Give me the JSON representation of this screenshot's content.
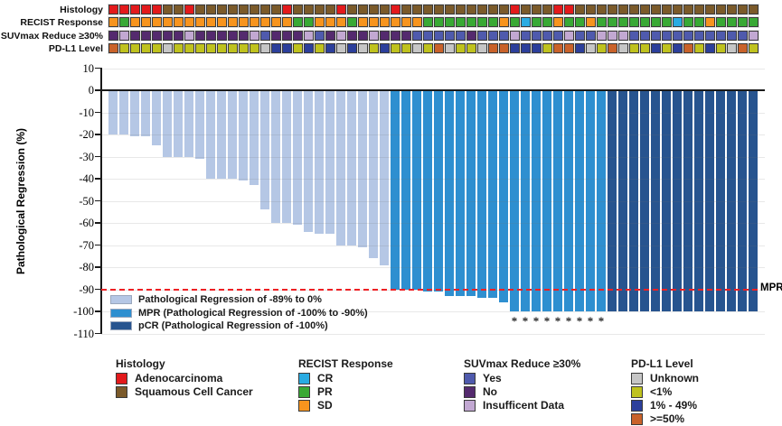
{
  "figure": {
    "y_axis_title": "Pathological Regression (%)",
    "asterisk_symbol": "*"
  },
  "palette": {
    "adeno": "#e31a1c",
    "squam": "#7b5a2a",
    "cr": "#29abe2",
    "pr": "#39a935",
    "sd": "#f7941e",
    "yes": "#4f5aad",
    "no": "#542a6e",
    "insuf": "#c2a8d2",
    "unknown": "#c6c6c6",
    "lt1": "#bfc21e",
    "mid": "#2c3f9b",
    "ge50": "#c9622a",
    "bar_light": "#b5c7e5",
    "bar_mpr": "#2e8fd0",
    "bar_pcr": "#27548f",
    "dashed_line": "#ee2024"
  },
  "annotations": {
    "rows": [
      {
        "label": "Histology",
        "values": [
          "adeno",
          "adeno",
          "adeno",
          "adeno",
          "adeno",
          "squam",
          "squam",
          "adeno",
          "squam",
          "squam",
          "squam",
          "squam",
          "squam",
          "squam",
          "squam",
          "squam",
          "adeno",
          "squam",
          "squam",
          "squam",
          "squam",
          "adeno",
          "squam",
          "squam",
          "squam",
          "squam",
          "adeno",
          "squam",
          "squam",
          "squam",
          "squam",
          "squam",
          "squam",
          "squam",
          "squam",
          "squam",
          "squam",
          "adeno",
          "squam",
          "squam",
          "squam",
          "adeno",
          "adeno",
          "squam",
          "squam",
          "squam",
          "squam",
          "squam",
          "squam",
          "squam",
          "squam",
          "squam",
          "squam",
          "squam",
          "squam",
          "squam",
          "squam",
          "squam",
          "squam",
          "squam"
        ]
      },
      {
        "label": "RECIST Response",
        "values": [
          "sd",
          "pr",
          "sd",
          "sd",
          "sd",
          "sd",
          "sd",
          "sd",
          "sd",
          "sd",
          "sd",
          "sd",
          "sd",
          "sd",
          "sd",
          "sd",
          "sd",
          "pr",
          "pr",
          "sd",
          "sd",
          "sd",
          "pr",
          "sd",
          "sd",
          "sd",
          "sd",
          "sd",
          "sd",
          "pr",
          "pr",
          "pr",
          "pr",
          "pr",
          "pr",
          "pr",
          "sd",
          "pr",
          "cr",
          "pr",
          "pr",
          "sd",
          "pr",
          "pr",
          "sd",
          "pr",
          "pr",
          "pr",
          "pr",
          "pr",
          "pr",
          "pr",
          "cr",
          "pr",
          "pr",
          "sd",
          "pr",
          "pr",
          "pr",
          "pr"
        ]
      },
      {
        "label": "SUVmax Reduce ≥30%",
        "values": [
          "no",
          "insuf",
          "no",
          "no",
          "no",
          "no",
          "no",
          "insuf",
          "no",
          "no",
          "no",
          "no",
          "no",
          "insuf",
          "yes",
          "no",
          "no",
          "no",
          "insuf",
          "yes",
          "no",
          "insuf",
          "no",
          "no",
          "insuf",
          "no",
          "no",
          "no",
          "yes",
          "yes",
          "yes",
          "yes",
          "yes",
          "no",
          "yes",
          "yes",
          "yes",
          "insuf",
          "yes",
          "yes",
          "yes",
          "yes",
          "insuf",
          "yes",
          "yes",
          "insuf",
          "insuf",
          "insuf",
          "yes",
          "yes",
          "yes",
          "yes",
          "yes",
          "yes",
          "yes",
          "yes",
          "yes",
          "yes",
          "yes",
          "insuf"
        ]
      },
      {
        "label": "PD-L1 Level",
        "values": [
          "ge50",
          "lt1",
          "lt1",
          "lt1",
          "lt1",
          "unknown",
          "lt1",
          "lt1",
          "lt1",
          "lt1",
          "lt1",
          "lt1",
          "lt1",
          "lt1",
          "unknown",
          "mid",
          "mid",
          "lt1",
          "mid",
          "lt1",
          "mid",
          "unknown",
          "mid",
          "unknown",
          "lt1",
          "mid",
          "lt1",
          "lt1",
          "unknown",
          "lt1",
          "ge50",
          "unknown",
          "lt1",
          "lt1",
          "unknown",
          "ge50",
          "ge50",
          "mid",
          "mid",
          "mid",
          "lt1",
          "ge50",
          "ge50",
          "mid",
          "unknown",
          "lt1",
          "ge50",
          "unknown",
          "lt1",
          "lt1",
          "mid",
          "lt1",
          "mid",
          "ge50",
          "lt1",
          "mid",
          "lt1",
          "unknown",
          "ge50",
          "lt1"
        ]
      }
    ]
  },
  "chart_data": {
    "type": "bar",
    "title": "",
    "xlabel": "",
    "ylabel": "Pathological Regression (%)",
    "ylim": [
      -110,
      10
    ],
    "yticks": [
      10,
      0,
      -10,
      -20,
      -30,
      -40,
      -50,
      -60,
      -70,
      -80,
      -90,
      -100,
      -110
    ],
    "grid": true,
    "series": [
      {
        "name": "Pathological Regression (%)",
        "values": [
          -20,
          -20,
          -21,
          -21,
          -25,
          -30,
          -30,
          -30,
          -31,
          -40,
          -40,
          -40,
          -41,
          -43,
          -54,
          -60,
          -60,
          -61,
          -64,
          -65,
          -65,
          -70,
          -70,
          -71,
          -76,
          -79,
          -90,
          -90,
          -90,
          -91,
          -91,
          -93,
          -93,
          -93,
          -94,
          -94,
          -96,
          -100,
          -100,
          -100,
          -100,
          -100,
          -100,
          -100,
          -100,
          -100,
          -100,
          -100,
          -100,
          -100,
          -100,
          -100,
          -100,
          -100,
          -100,
          -100,
          -100,
          -100,
          -100,
          -100
        ]
      }
    ],
    "bar_groups": [
      {
        "name": "Pathological Regression of -89% to 0%",
        "range": [
          1,
          26
        ],
        "color_key": "bar_light"
      },
      {
        "name": "MPR (Pathological Regression of -100% to -90%)",
        "range": [
          27,
          46
        ],
        "color_key": "bar_mpr"
      },
      {
        "name": "pCR (Pathological Regression of -100%)",
        "range": [
          47,
          60
        ],
        "color_key": "bar_pcr"
      }
    ],
    "asterisk_bar_indices": [
      38,
      39,
      40,
      41,
      42,
      43,
      44,
      45,
      46
    ],
    "reference_line": {
      "y": -90,
      "label": "MPR",
      "style": "dashed",
      "color": "#ee2024"
    },
    "legend_position": "lower-left"
  },
  "plot_legend": {
    "items": [
      {
        "label": "Pathological Regression of -89% to 0%",
        "color_key": "bar_light"
      },
      {
        "label": "MPR (Pathological Regression of -100% to -90%)",
        "color_key": "bar_mpr"
      },
      {
        "label": "pCR (Pathological Regression of -100%)",
        "color_key": "bar_pcr"
      }
    ]
  },
  "bottom_legend": {
    "groups": [
      {
        "title": "Histology",
        "items": [
          {
            "label": "Adenocarcinoma",
            "color_key": "adeno"
          },
          {
            "label": "Squamous Cell Cancer",
            "color_key": "squam"
          }
        ]
      },
      {
        "title": "RECIST Response",
        "items": [
          {
            "label": "CR",
            "color_key": "cr"
          },
          {
            "label": "PR",
            "color_key": "pr"
          },
          {
            "label": "SD",
            "color_key": "sd"
          }
        ]
      },
      {
        "title": "SUVmax Reduce ≥30%",
        "items": [
          {
            "label": "Yes",
            "color_key": "yes"
          },
          {
            "label": "No",
            "color_key": "no"
          },
          {
            "label": "Insufficent Data",
            "color_key": "insuf"
          }
        ]
      },
      {
        "title": "PD-L1 Level",
        "items": [
          {
            "label": "Unknown",
            "color_key": "unknown"
          },
          {
            "label": "<1%",
            "color_key": "lt1"
          },
          {
            "label": "1% - 49%",
            "color_key": "mid"
          },
          {
            "label": ">=50%",
            "color_key": "ge50"
          }
        ]
      }
    ]
  }
}
